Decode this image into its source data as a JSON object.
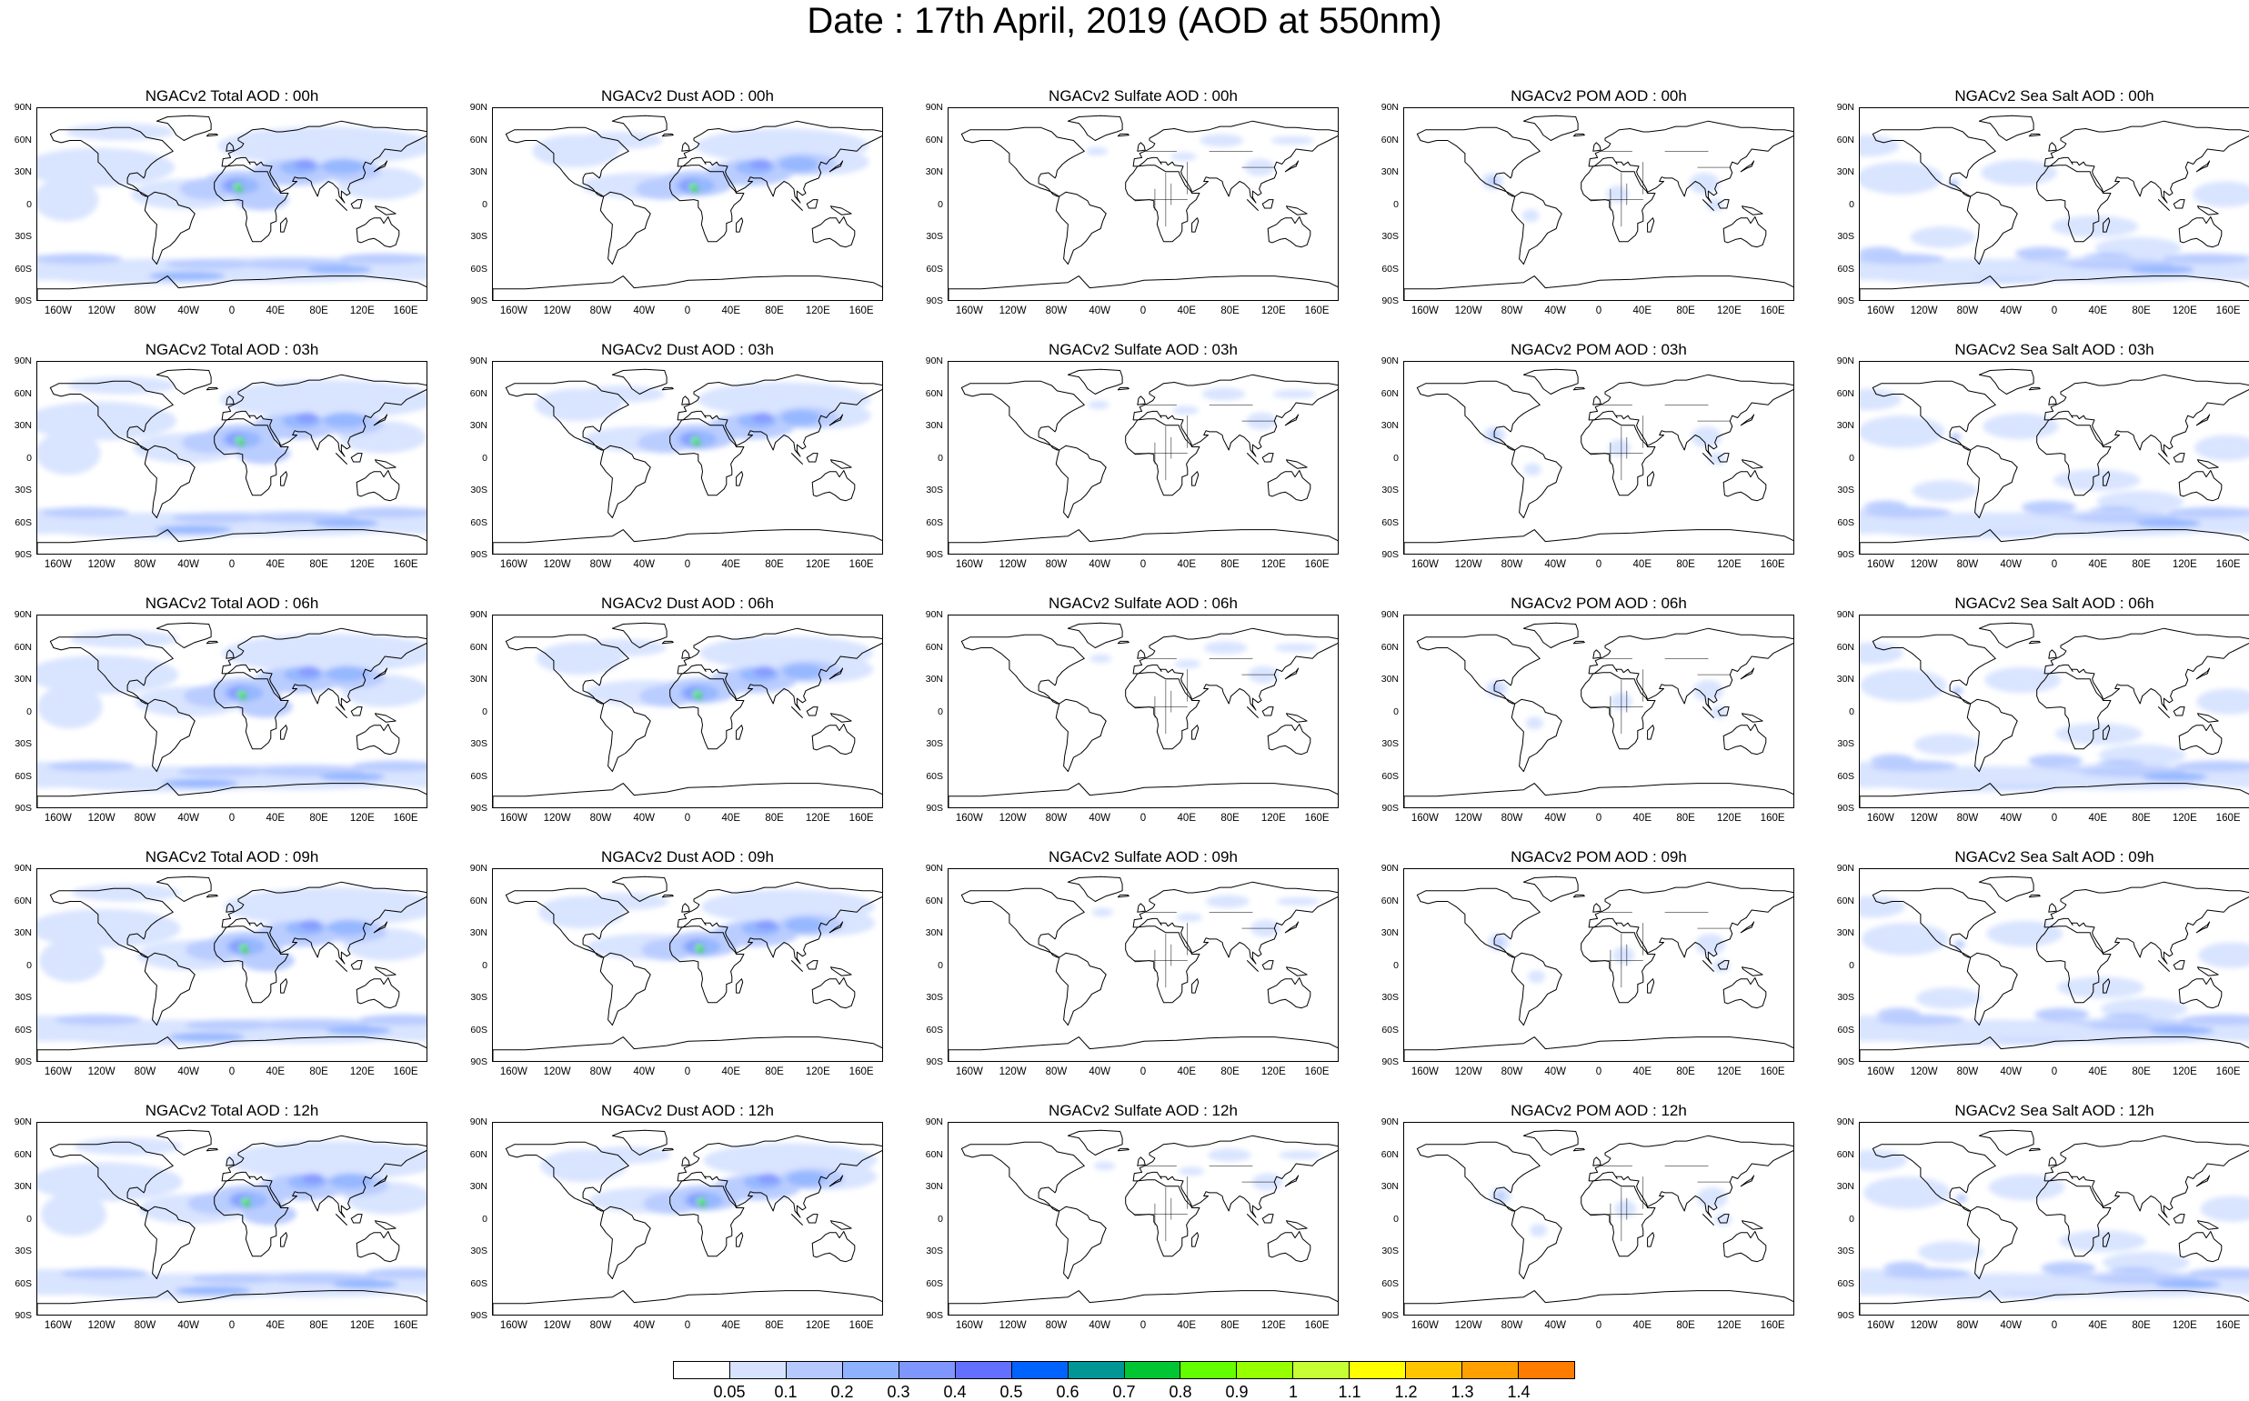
{
  "title": "Date : 17th April, 2019 (AOD at 550nm)",
  "lat_labels": [
    "90N",
    "60N",
    "30N",
    "0",
    "30S",
    "60S",
    "90S"
  ],
  "lon_labels": [
    "160W",
    "120W",
    "80W",
    "40W",
    "0",
    "40E",
    "80E",
    "120E",
    "160E"
  ],
  "colorbar": {
    "colors": [
      "#ffffff",
      "#d6e2ff",
      "#b5c9ff",
      "#8eb2ff",
      "#7f96ff",
      "#6370ff",
      "#0063ff",
      "#009696",
      "#00c633",
      "#63ff00",
      "#96ff00",
      "#c6ff33",
      "#ffff00",
      "#ffc600",
      "#ffa000",
      "#ff7c00",
      "#ff1900"
    ],
    "labels": [
      "0.05",
      "0.1",
      "0.2",
      "0.3",
      "0.4",
      "0.5",
      "0.6",
      "0.7",
      "0.8",
      "0.9",
      "1",
      "1.1",
      "1.2",
      "1.3",
      "1.4"
    ]
  },
  "rows": [
    {
      "hour": "00h",
      "titles": [
        "NGACv2 Total AOD : 00h",
        "NGACv2 Dust AOD : 00h",
        "NGACv2 Sulfate AOD : 00h",
        "NGACv2 POM AOD : 00h",
        "NGACv2 Sea Salt AOD : 00h"
      ]
    },
    {
      "hour": "03h",
      "titles": [
        "NGACv2 Total AOD : 03h",
        "NGACv2 Dust AOD : 03h",
        "NGACv2 Sulfate AOD : 03h",
        "NGACv2 POM AOD : 03h",
        "NGACv2 Sea Salt AOD : 03h"
      ]
    },
    {
      "hour": "06h",
      "titles": [
        "NGACv2 Total AOD : 06h",
        "NGACv2 Dust AOD : 06h",
        "NGACv2 Sulfate AOD : 06h",
        "NGACv2 POM AOD : 06h",
        "NGACv2 Sea Salt AOD : 06h"
      ]
    },
    {
      "hour": "09h",
      "titles": [
        "NGACv2 Total AOD : 09h",
        "NGACv2 Dust AOD : 09h",
        "NGACv2 Sulfate AOD : 09h",
        "NGACv2 POM AOD : 09h",
        "NGACv2 Sea Salt  AOD : 09h"
      ]
    },
    {
      "hour": "12h",
      "titles": [
        "NGACv2 Total AOD :  12h",
        "NGACv2 Dust AOD : 12h",
        "NGACv2 Sulfate AOD : 12h",
        "NGACv2 POM  AOD : 12h",
        "NGACv2 Sea Salt  AOD : 12h"
      ]
    }
  ],
  "species": [
    "total",
    "dust",
    "sulfate",
    "pom",
    "seasalt"
  ]
}
